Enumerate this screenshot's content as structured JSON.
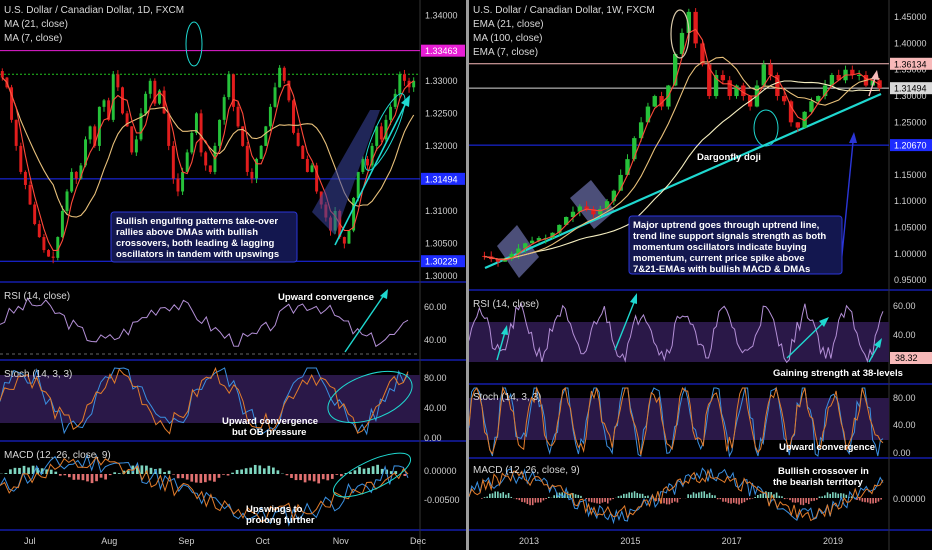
{
  "colors": {
    "up": "#26c23a",
    "down": "#e11d1d",
    "ma21": "#e8c07a",
    "ma7": "#ff4a3a",
    "ma100": "#f5eec0",
    "rsi": "#b38fd6",
    "stoch_k": "#3a8fe0",
    "stoch_d": "#e27c2b",
    "macd": "#3a8fe0",
    "signal": "#e27c2b",
    "hline_blue": "#1e2cff",
    "hline_magenta": "#e81ed5",
    "hline_green": "#22c41f",
    "trend": "#1fd8d0",
    "annot_bg": "#13174f",
    "annot_border": "#2b36d8",
    "band": "#2a1848",
    "badge_white": "#d8d8d8",
    "badge_pink": "#f7b9b9"
  },
  "chart_data": [
    {
      "id": "daily",
      "type": "candlestick",
      "title": "U.S. Dollar / Canadian Dollar, 1D, FXCM",
      "indicators": [
        "MA (21, close)",
        "MA (7, close)"
      ],
      "x_ticks": [
        "Jul",
        "Aug",
        "Sep",
        "Oct",
        "Nov",
        "Dec"
      ],
      "y_ticks": [
        "1.34000",
        "1.33000",
        "1.32500",
        "1.32000",
        "1.31000",
        "1.30500",
        "1.30000"
      ],
      "ylim": [
        1.2994,
        1.3418
      ],
      "levels": [
        {
          "value": 1.33463,
          "label": "1.33463",
          "color": "magenta"
        },
        {
          "value": 1.331,
          "label": "",
          "color": "green",
          "dashed": true
        },
        {
          "value": 1.31494,
          "label": "1.31494",
          "color": "blue"
        },
        {
          "value": 1.30229,
          "label": "1.30229",
          "color": "blue"
        }
      ],
      "candles_note": "close path approximated",
      "closes": [
        1.3305,
        1.329,
        1.324,
        1.32,
        1.316,
        1.314,
        1.311,
        1.308,
        1.306,
        1.304,
        1.303,
        1.3028,
        1.306,
        1.31,
        1.313,
        1.316,
        1.315,
        1.317,
        1.321,
        1.323,
        1.32,
        1.326,
        1.327,
        1.324,
        1.331,
        1.329,
        1.325,
        1.323,
        1.319,
        1.321,
        1.325,
        1.328,
        1.33,
        1.3265,
        1.3285,
        1.325,
        1.32,
        1.315,
        1.313,
        1.316,
        1.319,
        1.322,
        1.325,
        1.319,
        1.317,
        1.316,
        1.32,
        1.324,
        1.3275,
        1.331,
        1.326,
        1.323,
        1.32,
        1.316,
        1.315,
        1.318,
        1.32,
        1.323,
        1.326,
        1.329,
        1.332,
        1.33,
        1.327,
        1.322,
        1.32,
        1.318,
        1.316,
        1.317,
        1.313,
        1.311,
        1.309,
        1.307,
        1.31,
        1.306,
        1.305,
        1.307,
        1.312,
        1.316,
        1.318,
        1.317,
        1.32,
        1.323,
        1.321,
        1.324,
        1.326,
        1.328,
        1.331,
        1.33,
        1.329,
        1.33
      ],
      "annotation": "Bullish engulfing patterns take-over rallies above DMAs with bullish crossovers, both leading & lagging oscillators in tandem with upswings",
      "subpanels": [
        {
          "name": "RSI (14, close)",
          "ticks": [
            "60.00",
            "40.00"
          ],
          "note": "Upward convergence"
        },
        {
          "name": "Stoch (14, 3, 3)",
          "ticks": [
            "80.00",
            "40.00",
            "0.00"
          ],
          "note": "Upward convergence but OB pressure"
        },
        {
          "name": "MACD (12, 26, close, 9)",
          "ticks": [
            "0.00000",
            "-0.00500"
          ],
          "note": "Upswings to prolong further"
        }
      ]
    },
    {
      "id": "weekly",
      "type": "candlestick",
      "title": "U.S. Dollar / Canadian Dollar, 1W, FXCM",
      "indicators": [
        "EMA (21, close)",
        "MA (100, close)",
        "EMA (7, close)"
      ],
      "x_ticks": [
        "2013",
        "2015",
        "2017",
        "2019"
      ],
      "y_ticks": [
        "1.45000",
        "1.40000",
        "1.35000",
        "1.30000",
        "1.25000",
        "1.15000",
        "1.10000",
        "1.05000",
        "1.00000",
        "0.95000"
      ],
      "ylim": [
        0.935,
        1.475
      ],
      "levels": [
        {
          "value": 1.36134,
          "label": "1.36134",
          "color": "pink"
        },
        {
          "value": 1.31494,
          "label": "1.31494",
          "color": "white"
        },
        {
          "value": 1.2067,
          "label": "1.20670",
          "color": "blue"
        }
      ],
      "closes": [
        0.995,
        0.99,
        0.985,
        0.99,
        1.0,
        1.01,
        1.02,
        1.025,
        1.03,
        1.03,
        1.04,
        1.055,
        1.07,
        1.08,
        1.09,
        1.085,
        1.075,
        1.085,
        1.1,
        1.12,
        1.15,
        1.18,
        1.22,
        1.25,
        1.28,
        1.3,
        1.28,
        1.32,
        1.38,
        1.42,
        1.46,
        1.4,
        1.36,
        1.3,
        1.34,
        1.33,
        1.3,
        1.32,
        1.3,
        1.28,
        1.32,
        1.36,
        1.34,
        1.3,
        1.29,
        1.25,
        1.24,
        1.27,
        1.29,
        1.3,
        1.32,
        1.34,
        1.33,
        1.35,
        1.34,
        1.34,
        1.32,
        1.33,
        1.315
      ],
      "annotation": "Major uptrend goes through uptrend line, trend line support signals strength as both momentum oscillators indicate buying momentum, current price spike above 7&21-EMAs with bullish MACD & DMAs",
      "label_doji": "Dargonfly doji",
      "subpanels": [
        {
          "name": "RSI (14, close)",
          "ticks": [
            "60.00",
            "40.00"
          ],
          "badge": "38.32",
          "note": "Gaining strength at 38-levels"
        },
        {
          "name": "Stoch (14, 3, 3)",
          "ticks": [
            "80.00",
            "40.00",
            "0.00"
          ],
          "note": "Upward convergence"
        },
        {
          "name": "MACD (12, 26, close, 9)",
          "ticks": [
            "0.00000"
          ],
          "note": "Bullish crossover in the bearish territory"
        }
      ]
    }
  ]
}
